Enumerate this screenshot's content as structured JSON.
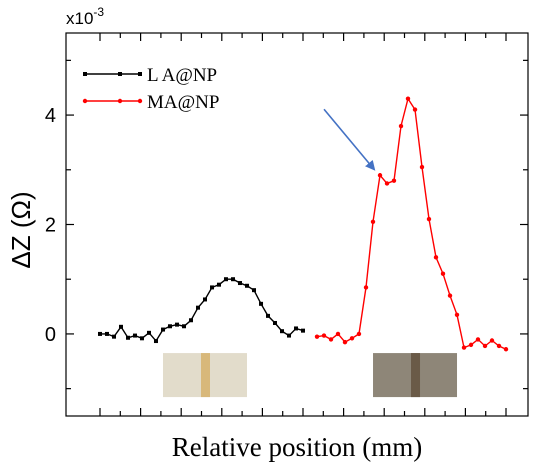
{
  "chart_data": {
    "type": "line",
    "title": "",
    "xlabel": "Relative position (mm)",
    "ylabel": "ΔZ (Ω)",
    "y_multiplier": "x10",
    "y_multiplier_exp": "-3",
    "ylim": [
      -1.5,
      5.5
    ],
    "xlim": [
      0,
      100
    ],
    "y_ticks": [
      0,
      2,
      4
    ],
    "y_tick_labels": [
      "0",
      "2",
      "4"
    ],
    "x_tick_labels_shown": false,
    "grid": false,
    "legend_position": "top-left",
    "series": [
      {
        "name": "L A@NP",
        "color": "#000000",
        "marker": "square",
        "x": [
          0.0,
          1.72,
          3.45,
          5.17,
          6.9,
          8.62,
          10.34,
          12.07,
          13.79,
          15.52,
          17.24,
          18.97,
          20.69,
          22.41,
          24.14,
          25.86,
          27.59,
          29.31,
          31.03,
          32.76,
          34.48,
          36.21,
          37.93,
          39.66,
          41.38,
          43.1,
          44.83,
          46.55,
          48.28,
          50.0
        ],
        "y": [
          0.0,
          0.0,
          -0.05,
          0.13,
          -0.07,
          -0.03,
          -0.08,
          0.02,
          -0.13,
          0.08,
          0.14,
          0.17,
          0.14,
          0.25,
          0.48,
          0.63,
          0.85,
          0.9,
          1.0,
          1.0,
          0.93,
          0.88,
          0.8,
          0.55,
          0.33,
          0.2,
          0.05,
          -0.03,
          0.1,
          0.06
        ],
        "offset_note": ""
      },
      {
        "name": "MA@NP",
        "color": "#ff0000",
        "marker": "circle",
        "x": [
          53.45,
          55.17,
          56.9,
          58.62,
          60.34,
          62.07,
          63.79,
          65.52,
          67.24,
          68.97,
          70.69,
          72.41,
          74.14,
          75.86,
          77.59,
          79.31,
          81.03,
          82.76,
          84.48,
          86.21,
          87.93,
          89.66,
          91.38,
          93.1,
          94.83,
          96.55,
          98.28,
          100.0
        ],
        "y": [
          -0.05,
          -0.03,
          -0.1,
          0.0,
          -0.15,
          -0.08,
          0.0,
          0.85,
          2.05,
          2.9,
          2.75,
          2.8,
          3.8,
          4.3,
          4.1,
          3.05,
          2.1,
          1.4,
          1.1,
          0.7,
          0.35,
          -0.25,
          -0.2,
          -0.1,
          -0.22,
          -0.12,
          -0.22,
          -0.28
        ]
      }
    ],
    "annotations": [
      {
        "type": "arrow",
        "color": "#4472c4",
        "points_to": {
          "x": 68.97,
          "y": 2.9
        }
      }
    ]
  },
  "insets": [
    {
      "name": "LA@NP strip photo",
      "near_x": 25.86,
      "background": "#e2dccb",
      "stripe": "#d8b87a"
    },
    {
      "name": "MA@NP strip photo",
      "near_x": 77.59,
      "background": "#8e8678",
      "stripe": "#6a5a47"
    }
  ]
}
